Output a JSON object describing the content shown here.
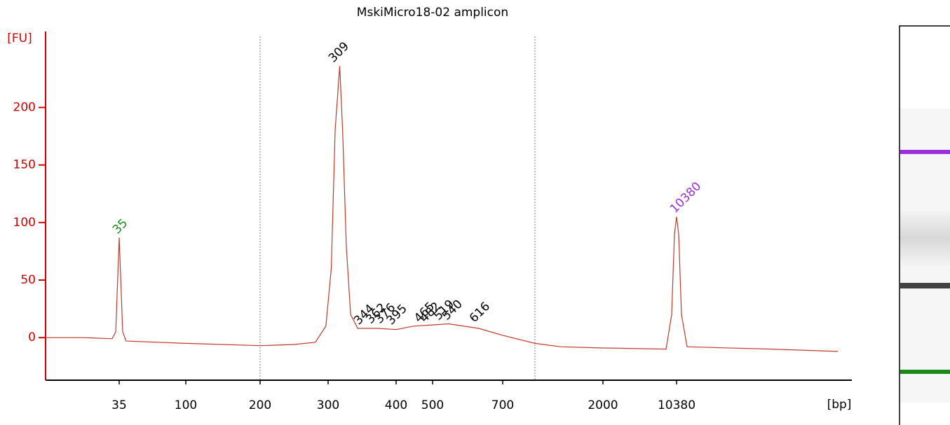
{
  "chart_data": {
    "type": "line",
    "title": "MskiMicro18-02 amplicon",
    "y_label": "[FU]",
    "x_label": "[bp]",
    "color": "#c0392b",
    "axis_color": "#d40000",
    "x": [
      10,
      19,
      31,
      33,
      35,
      37,
      39,
      100,
      200,
      245,
      278,
      296,
      304,
      309,
      315,
      319,
      324,
      330,
      340,
      371,
      400,
      445,
      500,
      540,
      624,
      700,
      981,
      1287,
      2000,
      8206,
      9300,
      9900,
      10380,
      10790,
      11360,
      12590,
      58900,
      200000
    ],
    "values": [
      0,
      0,
      -1,
      5,
      87,
      5,
      -3,
      -5,
      -7,
      -6,
      -4,
      10,
      60,
      180,
      236,
      180,
      80,
      20,
      8,
      8,
      7,
      10,
      11,
      12,
      8,
      2,
      -5,
      -8,
      -9,
      -10,
      20,
      90,
      105,
      90,
      20,
      -8,
      -10,
      -12
    ],
    "xlim": [
      10,
      200000
    ],
    "xticks": [
      35,
      100,
      200,
      300,
      400,
      500,
      700,
      2000,
      10380
    ],
    "ylim": [
      -37,
      266
    ],
    "yticks": [
      0,
      50,
      100,
      150,
      200
    ],
    "peak_labels": [
      {
        "label": "35",
        "x": 35,
        "y": 87,
        "color": "#1a8a1a"
      },
      {
        "label": "309",
        "x": 309,
        "y": 236,
        "color": "#000000"
      },
      {
        "label": "344",
        "x": 344,
        "y": 8,
        "color": "#000000"
      },
      {
        "label": "362",
        "x": 362,
        "y": 9,
        "color": "#000000"
      },
      {
        "label": "376",
        "x": 376,
        "y": 9,
        "color": "#000000"
      },
      {
        "label": "395",
        "x": 395,
        "y": 8,
        "color": "#000000"
      },
      {
        "label": "465",
        "x": 465,
        "y": 10,
        "color": "#000000"
      },
      {
        "label": "482",
        "x": 482,
        "y": 10,
        "color": "#000000"
      },
      {
        "label": "519",
        "x": 519,
        "y": 12,
        "color": "#000000"
      },
      {
        "label": "540",
        "x": 540,
        "y": 12,
        "color": "#000000"
      },
      {
        "label": "616",
        "x": 616,
        "y": 10,
        "color": "#000000"
      },
      {
        "label": "10380",
        "x": 10380,
        "y": 105,
        "color": "#9b30e0"
      }
    ]
  }
}
